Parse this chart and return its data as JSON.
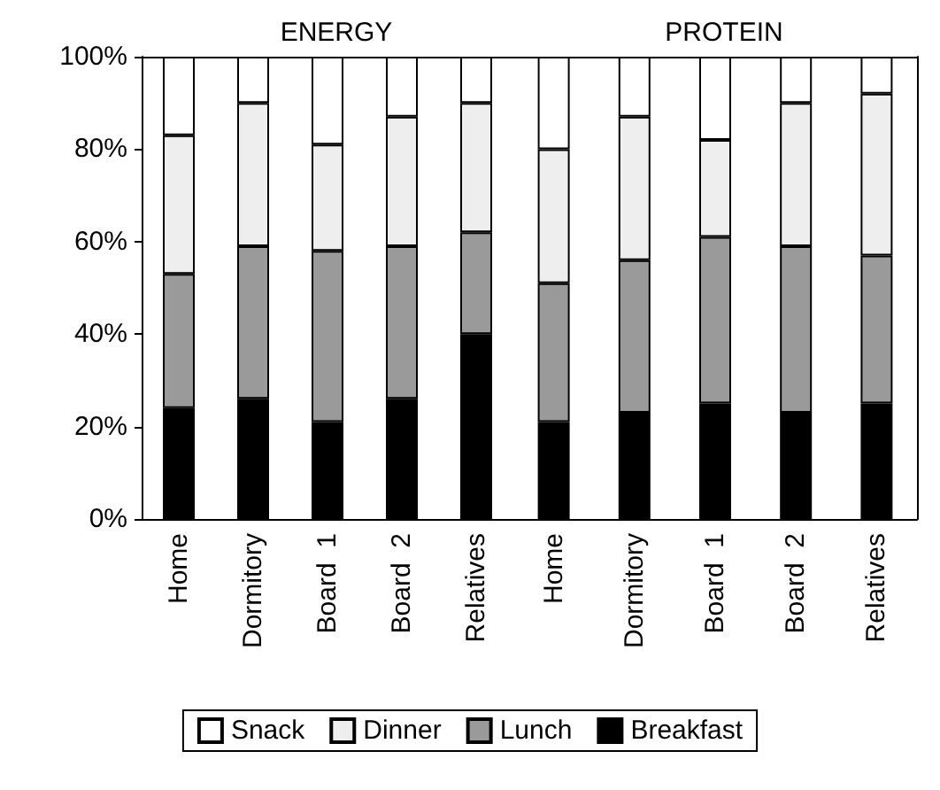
{
  "chart_data": [
    {
      "type": "bar",
      "title": "ENERGY",
      "stacked": true,
      "categories": [
        "Home",
        "Dormitory",
        "Board  1",
        "Board  2",
        "Relatives"
      ],
      "series": [
        {
          "name": "Breakfast",
          "color": "#000000",
          "values": [
            24,
            26,
            21,
            26,
            40
          ]
        },
        {
          "name": "Lunch",
          "color": "#9a9a9a",
          "values": [
            29,
            33,
            37,
            33,
            22
          ]
        },
        {
          "name": "Dinner",
          "color": "#eeeeee",
          "values": [
            30,
            31,
            23,
            28,
            28
          ]
        },
        {
          "name": "Snack",
          "color": "#ffffff",
          "values": [
            17,
            10,
            19,
            13,
            10
          ]
        }
      ],
      "ylim": [
        0,
        100
      ],
      "yticks": [
        {
          "value": 0,
          "label": "0%"
        },
        {
          "value": 20,
          "label": "20%"
        },
        {
          "value": 40,
          "label": "40%"
        },
        {
          "value": 60,
          "label": "60%"
        },
        {
          "value": 80,
          "label": "80%"
        },
        {
          "value": 100,
          "label": "100%"
        }
      ],
      "grid": false,
      "legend": "bottom"
    },
    {
      "type": "bar",
      "title": "PROTEIN",
      "stacked": true,
      "categories": [
        "Home",
        "Dormitory",
        "Board  1",
        "Board  2",
        "Relatives"
      ],
      "series": [
        {
          "color": "#000000",
          "values": [
            21,
            23,
            25,
            23,
            25
          ]
        },
        {
          "color": "#9a9a9a",
          "values": [
            30,
            33,
            36,
            36,
            32
          ]
        },
        {
          "color": "#eeeeee",
          "values": [
            29,
            31,
            21,
            31,
            35
          ]
        },
        {
          "color": "#ffffff",
          "values": [
            20,
            13,
            18,
            10,
            8
          ]
        }
      ],
      "ylim": [
        0,
        100
      ],
      "grid": false,
      "tick_labels": "x"
    }
  ]
}
